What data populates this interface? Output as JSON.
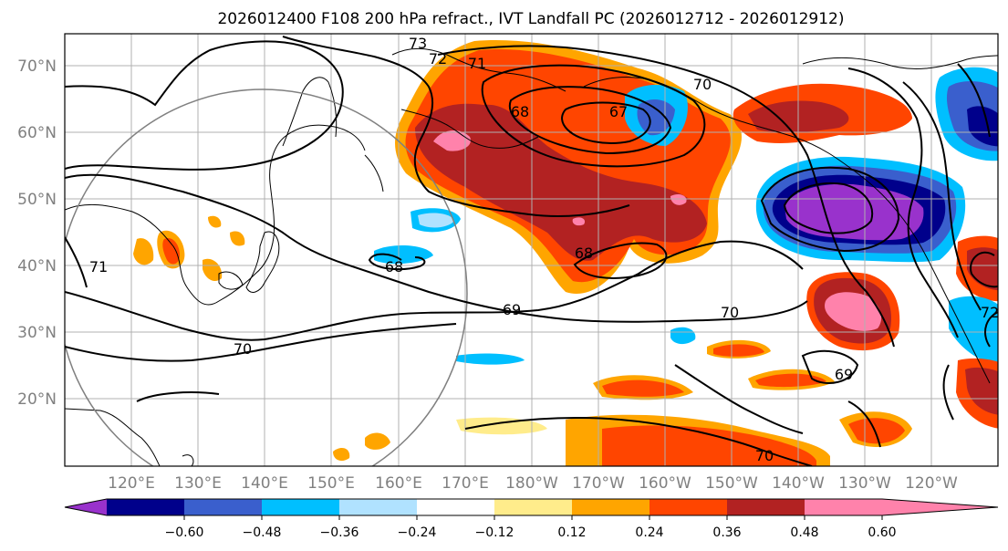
{
  "title": "2026012400 F108 200 hPa refract., IVT Landfall PC (2026012712 - 2026012912)",
  "map": {
    "lon_labels": [
      "120°E",
      "130°E",
      "140°E",
      "150°E",
      "160°E",
      "170°E",
      "180°W",
      "170°W",
      "160°W",
      "150°W",
      "140°W",
      "130°W",
      "120°W"
    ],
    "lat_labels": [
      "70°N",
      "60°N",
      "50°N",
      "40°N",
      "30°N",
      "20°N"
    ],
    "contour_labels": [
      "73",
      "72",
      "71",
      "70",
      "67",
      "68",
      "68",
      "68",
      "69",
      "70",
      "70",
      "69",
      "70",
      "71",
      "72"
    ]
  },
  "colorbar": {
    "ticks": [
      "−0.60",
      "−0.48",
      "−0.36",
      "−0.24",
      "−0.12",
      "0.12",
      "0.24",
      "0.36",
      "0.48",
      "0.60"
    ],
    "colors": [
      "#9932CC",
      "#00008B",
      "#3A5FCD",
      "#00BFFF",
      "#B0E2FF",
      "#FFFFFF",
      "#FFEC8B",
      "#FFA500",
      "#FF4500",
      "#B22222",
      "#FF82AB"
    ]
  },
  "fill_colors": {
    "purple": "#9932CC",
    "navy": "#00008B",
    "blue": "#3A5FCD",
    "cyan": "#00BFFF",
    "lightblue": "#B0E2FF",
    "yellow": "#FFEC8B",
    "orange": "#FFA500",
    "redorange": "#FF4500",
    "firebrick": "#B22222",
    "pink": "#FF82AB"
  }
}
